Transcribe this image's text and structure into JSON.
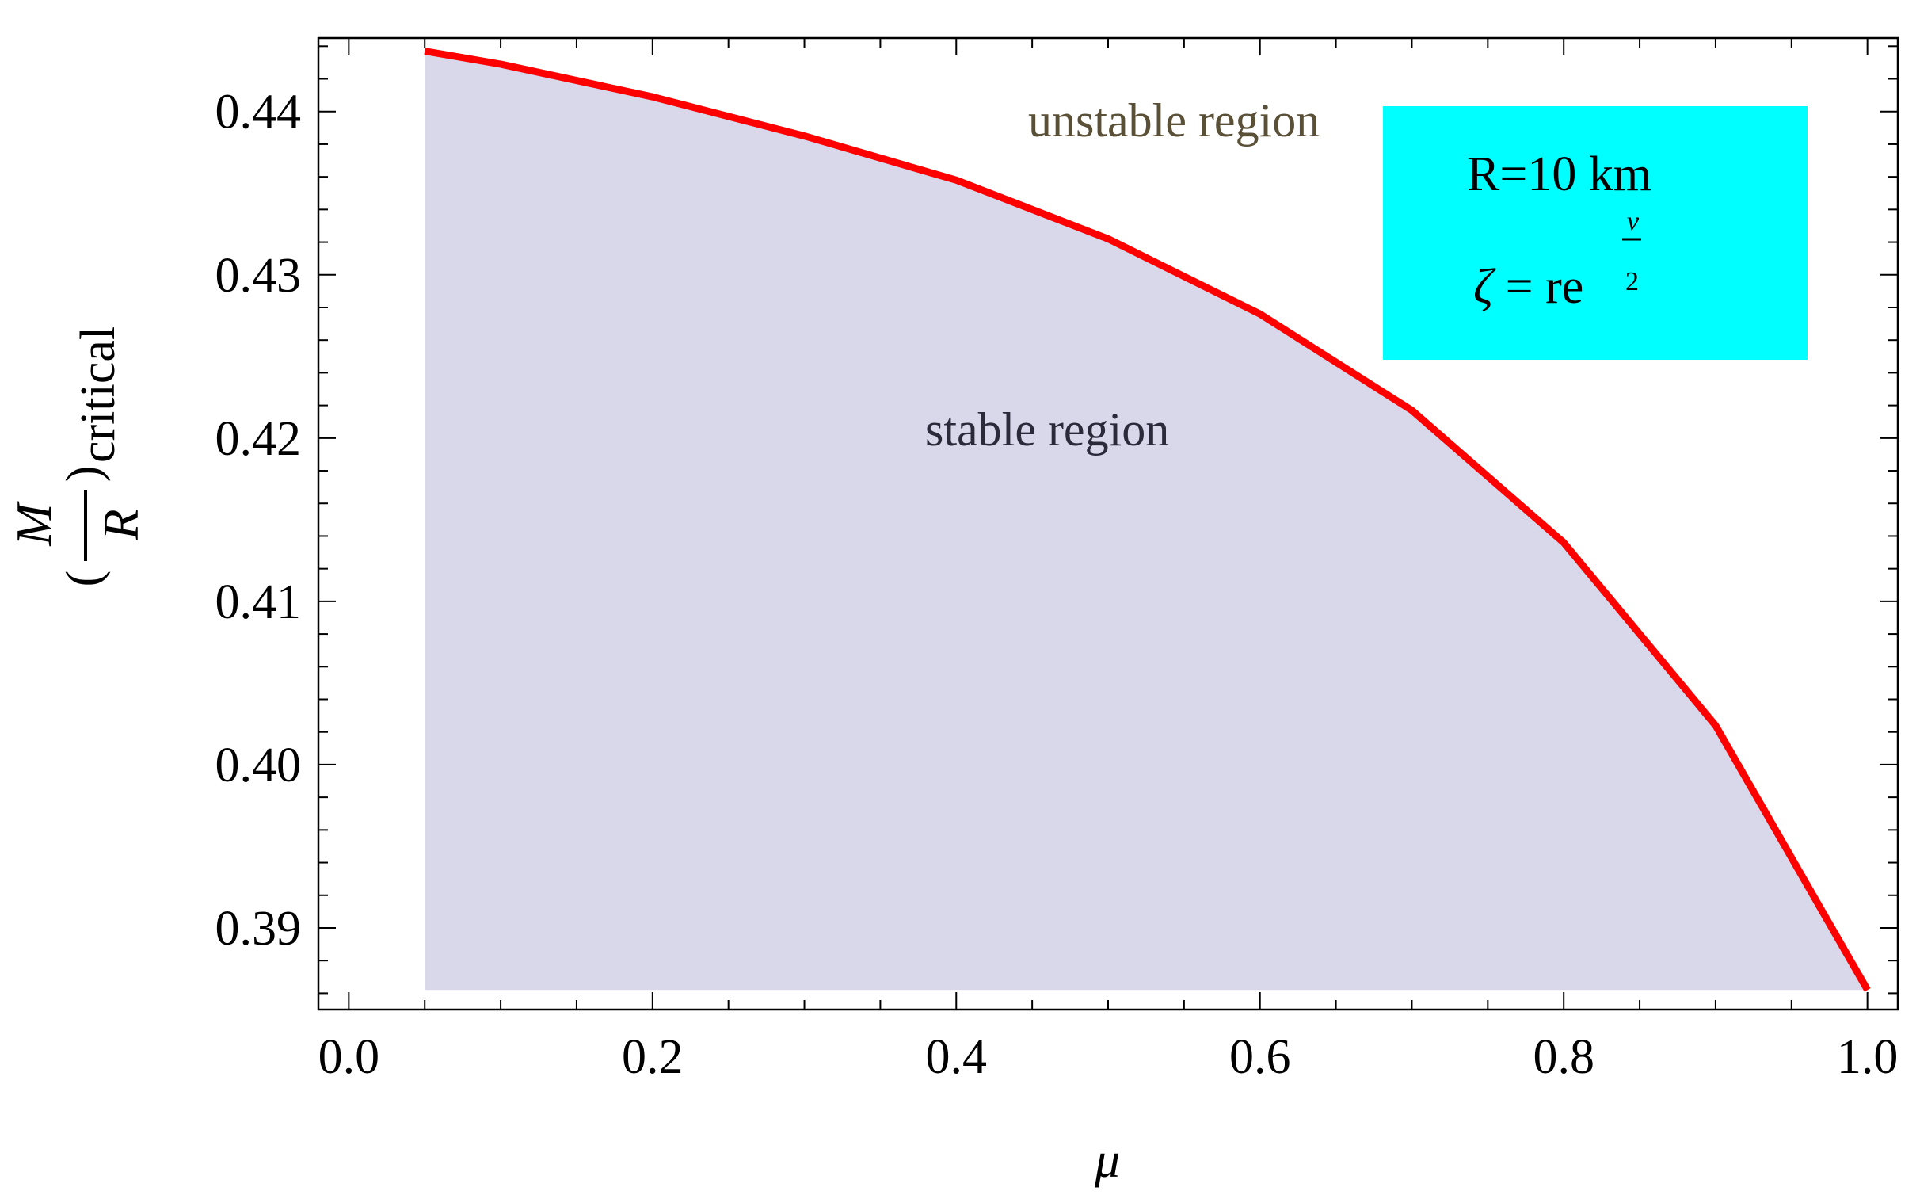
{
  "chart_data": {
    "type": "area",
    "x": [
      0.05,
      0.1,
      0.2,
      0.3,
      0.4,
      0.5,
      0.6,
      0.7,
      0.8,
      0.9,
      1.0
    ],
    "series": [
      {
        "values": [
          0.4437,
          0.4429,
          0.4409,
          0.4385,
          0.4358,
          0.4322,
          0.4276,
          0.4217,
          0.4136,
          0.4024,
          0.3862
        ],
        "color": "#ff0000"
      }
    ],
    "fill_color": "#d8d8ea",
    "xlim": [
      -0.02,
      1.02
    ],
    "ylim": [
      0.385,
      0.4445
    ],
    "xticks": [
      "0.0",
      "0.2",
      "0.4",
      "0.6",
      "0.8",
      "1.0"
    ],
    "yticks": [
      "0.39",
      "0.40",
      "0.41",
      "0.42",
      "0.43",
      "0.44"
    ],
    "xlabel": "μ",
    "ylabel": {
      "numerator": "M",
      "denominator": "R",
      "subscript": "critical",
      "open_paren": "(",
      "close_paren": ")"
    },
    "annotations": {
      "unstable": "unstable region",
      "stable": "stable region",
      "unstable_color": "#5a5038",
      "stable_color": "#2a2a3a"
    },
    "legend_box": {
      "line1": "R=10 km",
      "zeta": "ζ",
      "equals": " = ",
      "base": "re",
      "exp_num": "ν",
      "exp_den": "2",
      "color": "#00ffff",
      "position": "top-right"
    },
    "grid": false
  }
}
